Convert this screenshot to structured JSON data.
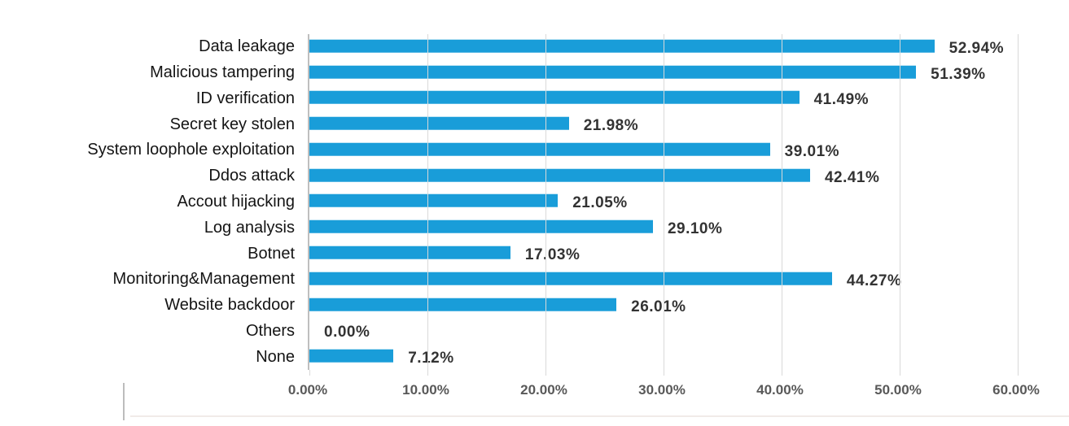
{
  "chart_data": {
    "type": "bar",
    "orientation": "horizontal",
    "title": "",
    "xlabel": "",
    "ylabel": "",
    "categories": [
      "Data leakage",
      "Malicious tampering",
      "ID verification",
      "Secret key stolen",
      "System loophole exploitation",
      "Ddos attack",
      "Accout hijacking",
      "Log analysis",
      "Botnet",
      "Monitoring&Management",
      "Website backdoor",
      "Others",
      "None"
    ],
    "values": [
      52.94,
      51.39,
      41.49,
      21.98,
      39.01,
      42.41,
      21.05,
      29.1,
      17.03,
      44.27,
      26.01,
      0.0,
      7.12
    ],
    "value_labels": [
      "52.94%",
      "51.39%",
      "41.49%",
      "21.98%",
      "39.01%",
      "42.41%",
      "21.05%",
      "29.10%",
      "17.03%",
      "44.27%",
      "26.01%",
      "0.00%",
      "7.12%"
    ],
    "xlim": [
      0,
      60
    ],
    "x_ticks": [
      0,
      10,
      20,
      30,
      40,
      50,
      60
    ],
    "x_tick_labels": [
      "0.00%",
      "10.00%",
      "20.00%",
      "30.00%",
      "40.00%",
      "50.00%",
      "60.00%"
    ],
    "grid": true,
    "legend": "none",
    "colors": {
      "bar": "#199dd9",
      "gridline": "#d9d9d9",
      "axis": "#bfbfbf",
      "value_label": "#333333",
      "tick_label": "#595959"
    }
  }
}
